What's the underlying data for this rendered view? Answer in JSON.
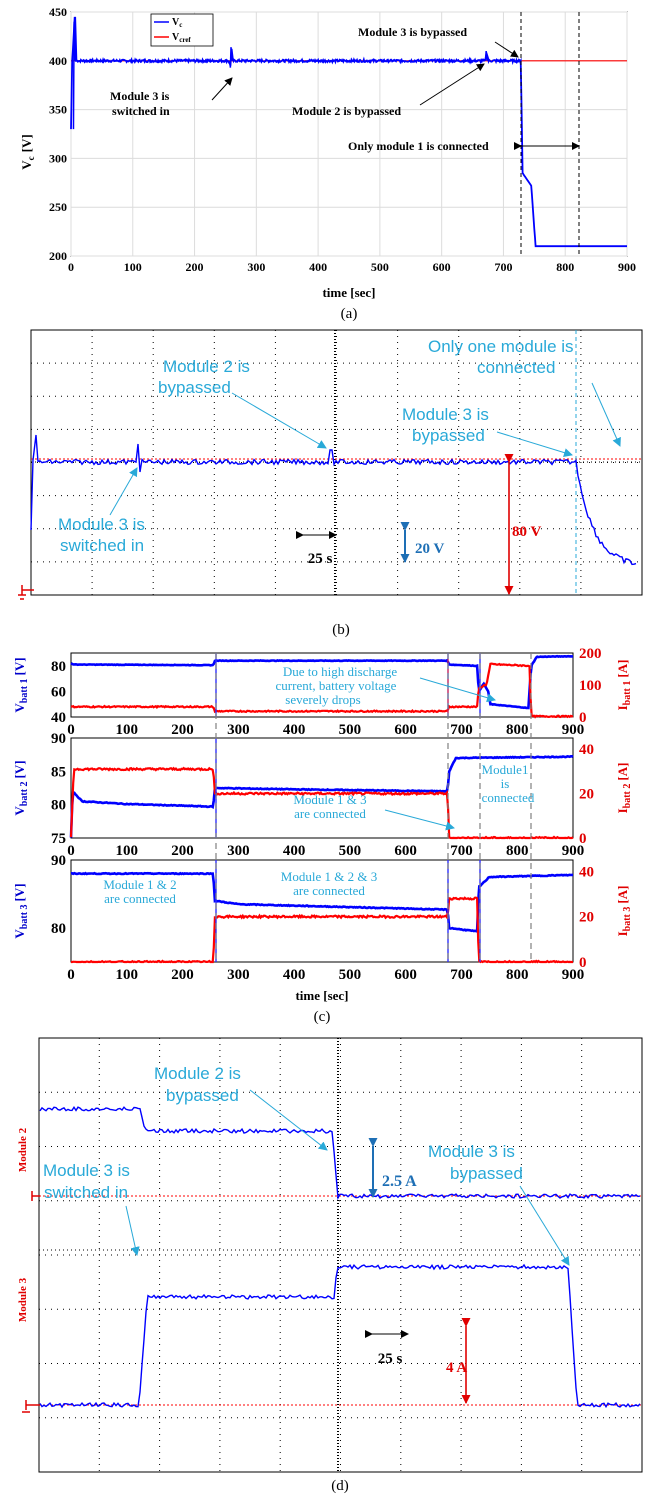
{
  "chart_data": [
    {
      "panel": "(a)",
      "type": "line",
      "xlabel": "time [sec]",
      "ylabel": "V_c [V]",
      "xlim": [
        0,
        900
      ],
      "ylim": [
        200,
        450
      ],
      "xticks": [
        0,
        100,
        200,
        300,
        400,
        500,
        600,
        700,
        800,
        900
      ],
      "yticks": [
        200,
        250,
        300,
        350,
        400,
        450
      ],
      "grid": true,
      "legend": {
        "placement": "top-left",
        "entries": [
          "Vc",
          "Vcref"
        ]
      },
      "series": [
        {
          "name": "Vc",
          "color": "#0000ff",
          "points": [
            [
              0,
              330
            ],
            [
              2,
              400
            ],
            [
              6,
              445
            ],
            [
              8,
              400
            ],
            [
              255,
              400
            ],
            [
              258,
              395
            ],
            [
              260,
              412
            ],
            [
              262,
              400
            ],
            [
              670,
              400
            ],
            [
              673,
              408
            ],
            [
              676,
              400
            ],
            [
              728,
              400
            ],
            [
              731,
              285
            ],
            [
              745,
              272
            ],
            [
              752,
              210
            ],
            [
              900,
              210
            ]
          ]
        },
        {
          "name": "Vcref",
          "color": "#ff0000",
          "points": [
            [
              0,
              400
            ],
            [
              900,
              400
            ]
          ]
        }
      ],
      "vlines": [
        728,
        823
      ],
      "annotations": [
        "Module 3 is bypassed",
        "Module 3 is switched in",
        "Module 2 is  bypassed",
        "Only module 1 is connected"
      ]
    },
    {
      "panel": "(b)",
      "type": "line",
      "note": "oscilloscope capture",
      "scale_labels": [
        "25 s",
        "20 V",
        "80 V"
      ],
      "annotations": [
        "Module 2 is bypassed",
        "Only one module is connected",
        "Module 3 is bypassed",
        "Module 3 is switched in"
      ]
    },
    {
      "panel": "(c)",
      "type": "line",
      "xlabel": "time [sec]",
      "xlim": [
        0,
        900
      ],
      "xticks": [
        0,
        100,
        200,
        300,
        400,
        500,
        600,
        700,
        800,
        900
      ],
      "subplots": [
        {
          "ylabel_left": "V_batt 1 [V]",
          "ylim_left": [
            40,
            90
          ],
          "yticks_left": [
            40,
            60,
            80
          ],
          "ylabel_right": "I_batt 1 [A]",
          "ylim_right": [
            0,
            200
          ],
          "yticks_right": [
            0,
            100,
            200
          ],
          "series": [
            {
              "name": "Vbatt1",
              "color": "#0000ff",
              "axis": "left",
              "points": [
                [
                  0,
                  82
                ],
                [
                  5,
                  81
                ],
                [
                  255,
                  80.5
                ],
                [
                  258,
                  84
                ],
                [
                  675,
                  84
                ],
                [
                  678,
                  81
                ],
                [
                  728,
                  80
                ],
                [
                  731,
                  60
                ],
                [
                  740,
                  66
                ],
                [
                  748,
                  60
                ],
                [
                  752,
                  50
                ],
                [
                  820,
                  47
                ],
                [
                  825,
                  80
                ],
                [
                  835,
                  87
                ],
                [
                  900,
                  87.5
                ]
              ]
            },
            {
              "name": "Ibatt1",
              "color": "#ff0000",
              "axis": "right",
              "points": [
                [
                  0,
                  32
                ],
                [
                  255,
                  32
                ],
                [
                  258,
                  18
                ],
                [
                  675,
                  18
                ],
                [
                  678,
                  32
                ],
                [
                  728,
                  32
                ],
                [
                  731,
                  90
                ],
                [
                  745,
                  102
                ],
                [
                  752,
                  165
                ],
                [
                  822,
                  160
                ],
                [
                  825,
                  2
                ],
                [
                  900,
                  2
                ]
              ]
            }
          ],
          "annotations": [
            "Due to high discharge current, battery voltage severely drops"
          ]
        },
        {
          "ylabel_left": "V_batt 2 [V]",
          "ylim_left": [
            75,
            90
          ],
          "yticks_left": [
            75,
            80,
            85,
            90
          ],
          "ylabel_right": "I_batt 2 [A]",
          "ylim_right": [
            0,
            45
          ],
          "yticks_right": [
            0,
            20,
            40
          ],
          "series": [
            {
              "name": "Vbatt2",
              "color": "#0000ff",
              "axis": "left",
              "points": [
                [
                  0,
                  75
                ],
                [
                  3,
                  82
                ],
                [
                  20,
                  80.5
                ],
                [
                  100,
                  80.1
                ],
                [
                  255,
                  79.7
                ],
                [
                  258,
                  82.5
                ],
                [
                  400,
                  82.3
                ],
                [
                  675,
                  82
                ],
                [
                  678,
                  85
                ],
                [
                  690,
                  87
                ],
                [
                  900,
                  87.2
                ]
              ]
            },
            {
              "name": "Ibatt2",
              "color": "#ff0000",
              "axis": "right",
              "points": [
                [
                  0,
                  0
                ],
                [
                  5,
                  31
                ],
                [
                  255,
                  31
                ],
                [
                  258,
                  20
                ],
                [
                  675,
                  20
                ],
                [
                  678,
                  0
                ],
                [
                  900,
                  0
                ]
              ]
            }
          ],
          "annotations": [
            "Module 1 & 3 are connected",
            "Module1 is connected"
          ]
        },
        {
          "ylabel_left": "V_batt 3 [V]",
          "ylim_left": [
            75,
            90
          ],
          "yticks_left": [
            80,
            90
          ],
          "ylabel_right": "I_batt 3 [A]",
          "ylim_right": [
            0,
            45
          ],
          "yticks_right": [
            0,
            20,
            40
          ],
          "series": [
            {
              "name": "Vbatt3",
              "color": "#0000ff",
              "axis": "left",
              "points": [
                [
                  0,
                  88
                ],
                [
                  255,
                  88
                ],
                [
                  258,
                  84
                ],
                [
                  300,
                  83.5
                ],
                [
                  675,
                  82.7
                ],
                [
                  678,
                  80
                ],
                [
                  728,
                  79.5
                ],
                [
                  731,
                  86
                ],
                [
                  750,
                  87.5
                ],
                [
                  900,
                  87.8
                ]
              ]
            },
            {
              "name": "Ibatt3",
              "color": "#ff0000",
              "axis": "right",
              "points": [
                [
                  0,
                  0
                ],
                [
                  255,
                  0
                ],
                [
                  258,
                  20
                ],
                [
                  675,
                  20
                ],
                [
                  678,
                  28
                ],
                [
                  728,
                  28
                ],
                [
                  731,
                  0
                ],
                [
                  900,
                  0
                ]
              ]
            }
          ],
          "annotations": [
            "Module 1 & 2 are connected",
            "Module 1 & 2 & 3 are connected"
          ]
        }
      ],
      "vlines": [
        258,
        675,
        730,
        823
      ]
    },
    {
      "panel": "(d)",
      "type": "line",
      "note": "oscilloscope capture",
      "channel_labels": [
        "Module 2",
        "Module 3"
      ],
      "scale_labels": [
        "2.5 A",
        "25 s",
        "4 A"
      ],
      "annotations": [
        "Module 2 is bypassed",
        "Module 3 is switched in",
        "Module 3 is bypassed"
      ]
    }
  ],
  "text": {
    "a": {
      "xlabel": "time [sec]",
      "ylabel": "V",
      "ylabel_sub": "c",
      "ylabel_unit": "[V]",
      "legend_vc": "V",
      "legend_vc_sub": "c",
      "legend_vcref": "V",
      "legend_vcref_sub": "cref",
      "ann1": "Module 3 is bypassed",
      "ann2a": "Module 3 is",
      "ann2b": "switched in",
      "ann3": "Module 2 is  bypassed",
      "ann4": "Only module 1 is connected",
      "caption": "(a)"
    },
    "b": {
      "ann1a": "Module 2 is",
      "ann1b": "bypassed",
      "ann2a": "Only one module is",
      "ann2b": "connected",
      "ann3a": "Module 3 is",
      "ann3b": "bypassed",
      "ann4a": "Module 3 is",
      "ann4b": "switched in",
      "scale_t": "25 s",
      "scale_v": "20 V",
      "scale_r": "80 V",
      "caption": "(b)"
    },
    "c": {
      "v1": "V",
      "v1_sub": "batt 1",
      "v1_unit": "[V]",
      "i1": "I",
      "i1_sub": "batt 1",
      "i1_unit": "[A]",
      "v2": "V",
      "v2_sub": "batt 2",
      "v2_unit": "[V]",
      "i2": "I",
      "i2_sub": "batt 2",
      "i2_unit": "[A]",
      "v3": "V",
      "v3_sub": "batt 3",
      "v3_unit": "[V]",
      "i3": "I",
      "i3_sub": "batt 3",
      "i3_unit": "[A]",
      "ann1a": "Due to high discharge",
      "ann1b": "current, battery voltage",
      "ann1c": "severely drops",
      "ann2a": "Module 1 & 3",
      "ann2b": "are connected",
      "ann3a": "Module1",
      "ann3b": "is",
      "ann3c": "connected",
      "ann4a": "Module 1 & 2",
      "ann4b": "are connected",
      "ann5a": "Module 1 & 2 & 3",
      "ann5b": "are connected",
      "xlabel": "time [sec]",
      "caption": "(c)"
    },
    "d": {
      "ann1a": "Module 2 is",
      "ann1b": "bypassed",
      "ann2a": "Module 3 is",
      "ann2b": "switched in",
      "ann3a": "Module 3 is",
      "ann3b": "bypassed",
      "ch2": "Module 2",
      "ch3": "Module 3",
      "scale_a": "2.5 A",
      "scale_t": "25 s",
      "scale_r": "4 A",
      "caption": "(d)"
    }
  }
}
